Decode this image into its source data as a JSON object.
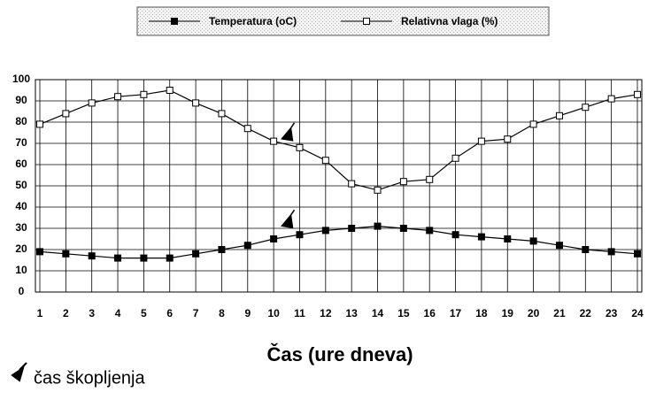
{
  "chart_data": {
    "type": "line",
    "x_label": "Čas (ure dneva)",
    "footnote": "čas škopljenja",
    "categories": [
      "1",
      "2",
      "3",
      "4",
      "5",
      "6",
      "7",
      "8",
      "9",
      "10",
      "11",
      "12",
      "13",
      "14",
      "15",
      "16",
      "17",
      "18",
      "19",
      "20",
      "21",
      "22",
      "23",
      "24"
    ],
    "series": [
      {
        "name": "Temperatura (oC)",
        "color": "#000000",
        "marker": "filled",
        "values": [
          19,
          18,
          17,
          16,
          16,
          16,
          18,
          20,
          22,
          25,
          27,
          29,
          30,
          31,
          30,
          29,
          27,
          26,
          25,
          24,
          22,
          20,
          19,
          18
        ]
      },
      {
        "name": "Relativna vlaga (%)",
        "color": "#000000",
        "marker": "open",
        "values": [
          79,
          84,
          89,
          92,
          93,
          95,
          89,
          84,
          77,
          71,
          68,
          62,
          51,
          48,
          52,
          53,
          63,
          71,
          72,
          79,
          83,
          87,
          91,
          93
        ]
      }
    ],
    "ylim": [
      0,
      100
    ],
    "yticks": [
      0,
      10,
      20,
      30,
      40,
      50,
      60,
      70,
      80,
      90,
      100
    ],
    "grid": true
  }
}
